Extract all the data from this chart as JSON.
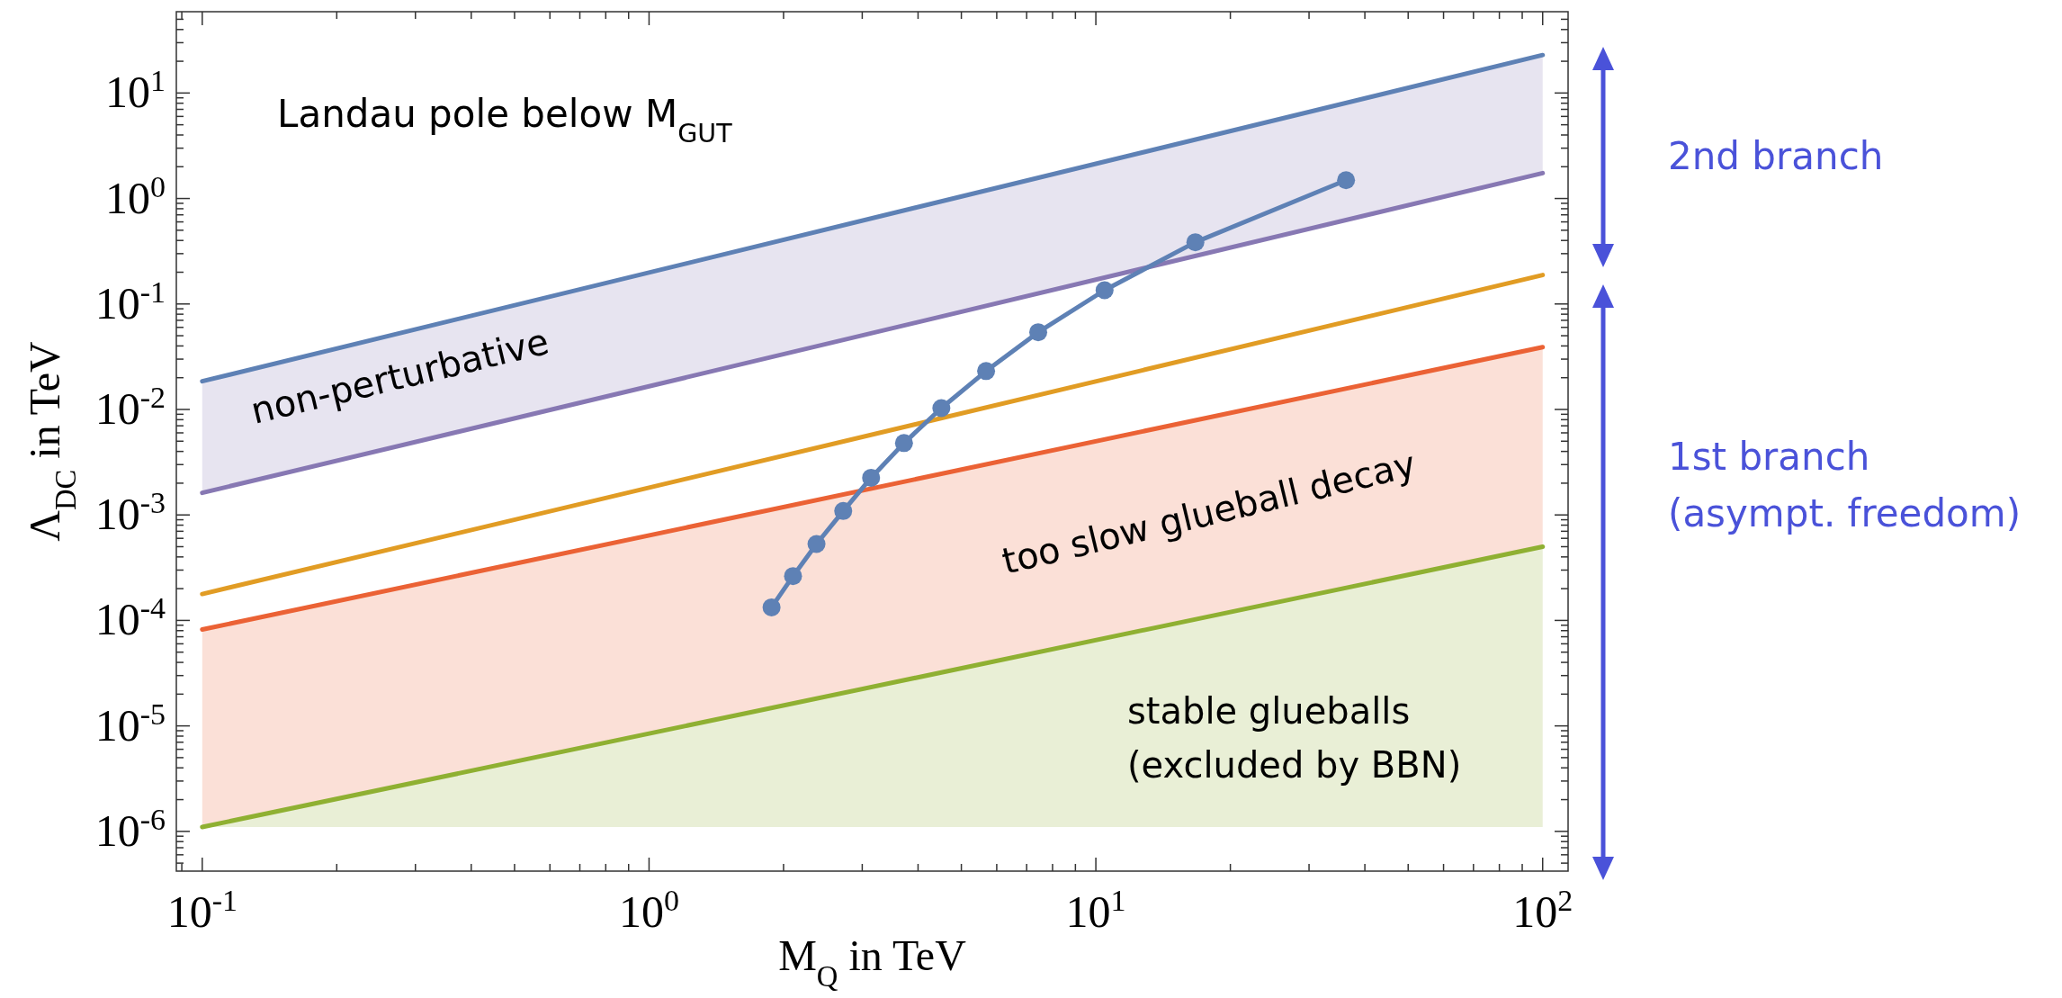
{
  "chart_data": {
    "type": "line",
    "xlabel": "M$_{Q}$ in TeV",
    "ylabel": "Λ$_{DC}$ in TeV",
    "log": "xy",
    "grid": false,
    "xlim": [
      0.0875,
      114
    ],
    "ylim": [
      4.2e-07,
      59
    ],
    "xticks": [
      {
        "value": 0.1,
        "label": "10$^{-1}$"
      },
      {
        "value": 1,
        "label": "10$^{0}$"
      },
      {
        "value": 10,
        "label": "10$^{1}$"
      },
      {
        "value": 100,
        "label": "10$^{2}$"
      }
    ],
    "yticks": [
      {
        "value": 1e-06,
        "label": "10$^{-6}$"
      },
      {
        "value": 1e-05,
        "label": "10$^{-5}$"
      },
      {
        "value": 0.0001,
        "label": "10$^{-4}$"
      },
      {
        "value": 0.001,
        "label": "10$^{-3}$"
      },
      {
        "value": 0.01,
        "label": "10$^{-2}$"
      },
      {
        "value": 0.1,
        "label": "10$^{-1}$"
      },
      {
        "value": 1,
        "label": "10$^{0}$"
      },
      {
        "value": 10,
        "label": "10$^{1}$"
      }
    ],
    "series": [
      {
        "color": "#5e81b5",
        "x": [
          0.1,
          100
        ],
        "values": [
          0.0185,
          22.9
        ]
      },
      {
        "color": "#8778b3",
        "x": [
          0.1,
          100
        ],
        "values": [
          0.00162,
          1.74
        ],
        "lower": [
          0.00162,
          1.74
        ],
        "upper": [
          0.0185,
          22.9
        ]
      },
      {
        "color": "#e19c24",
        "x": [
          0.1,
          100
        ],
        "values": [
          0.000178,
          0.188
        ]
      },
      {
        "color": "#eb6235",
        "x": [
          0.1,
          100
        ],
        "values": [
          8.2e-05,
          0.039
        ],
        "lower": [
          1.1e-06,
          0.0005
        ],
        "upper": [
          8.2e-05,
          0.039
        ]
      },
      {
        "color": "#8fb032",
        "x": [
          0.1,
          100
        ],
        "values": [
          1.1e-06,
          0.0005
        ],
        "lower": [
          1.1e-06,
          1.1e-06
        ],
        "upper": [
          1.1e-06,
          0.0005
        ]
      },
      {
        "color": "#5e81b5",
        "marker": "circle",
        "x": [
          1.88,
          2.1,
          2.37,
          2.72,
          3.14,
          3.72,
          4.51,
          5.68,
          7.43,
          10.46,
          16.7,
          36.3
        ],
        "values": [
          0.000133,
          0.000263,
          0.00053,
          0.00109,
          0.00225,
          0.0048,
          0.0103,
          0.0231,
          0.054,
          0.135,
          0.385,
          1.49
        ]
      }
    ],
    "annotations": [
      "Landau pole below M$_{GUT}$",
      "non-perturbative",
      "too slow glueball decay",
      "stable glueballs\n(excluded by BBN)",
      "2nd branch",
      "1st branch\n(asympt. freedom)"
    ]
  }
}
